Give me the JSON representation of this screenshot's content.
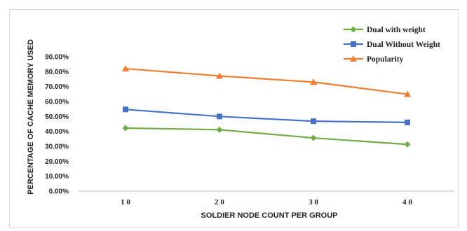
{
  "chart_data": {
    "type": "line",
    "categories": [
      "1 0",
      "2 0",
      "3 0",
      "4 0"
    ],
    "xlabel": "SOLDIER NODE COUNT PER GROUP",
    "ylabel": "PERCENTAGE OF CACHE MEMORY USED",
    "ylim": [
      0,
      90
    ],
    "yticks": [
      "0.00%",
      "10.00%",
      "20.00%",
      "30.00%",
      "40.00%",
      "50.00%",
      "60.00%",
      "70.00%",
      "80.00%",
      "90.00%"
    ],
    "grid": false,
    "legend_position": "top-right",
    "series": [
      {
        "name": "Dual with weight",
        "values": [
          42.2,
          41.1,
          35.6,
          31.3
        ],
        "color": "#70ad47",
        "marker": "diamond"
      },
      {
        "name": "Dual Without Weight",
        "values": [
          54.7,
          50.0,
          46.8,
          46.0
        ],
        "color": "#4472c4",
        "marker": "square"
      },
      {
        "name": "Popularity",
        "values": [
          82.0,
          77.1,
          73.0,
          64.9
        ],
        "color": "#ed7d31",
        "marker": "triangle"
      }
    ]
  }
}
